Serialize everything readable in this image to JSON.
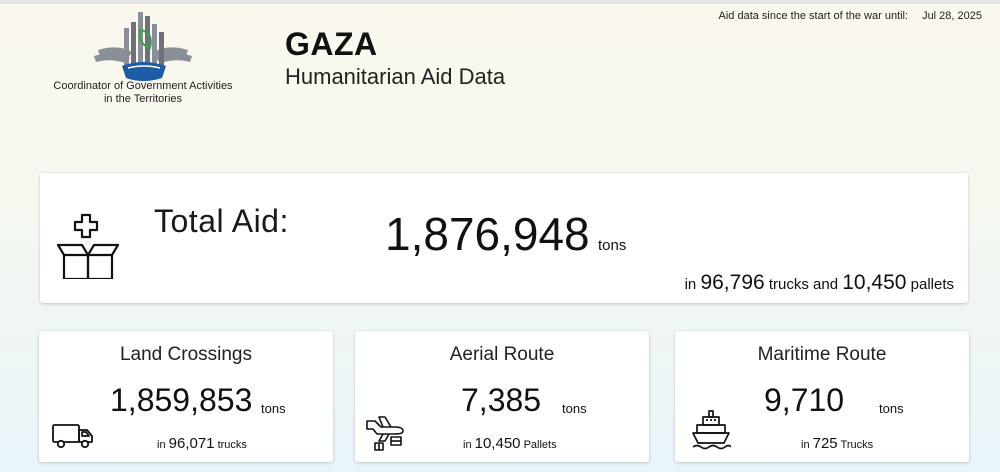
{
  "header": {
    "org_line1": "Coordinator of Government Activities",
    "org_line2": "in the Territories",
    "title": "GAZA",
    "subtitle": "Humanitarian Aid Data",
    "asof_label": "Aid data since the start of the war until:",
    "asof_date": "Jul 28, 2025"
  },
  "total": {
    "label": "Total Aid:",
    "value": "1,876,948",
    "unit": "tons",
    "in_word": "in",
    "trucks": "96,796",
    "trucks_label": "trucks and",
    "pallets": "10,450",
    "pallets_label": "pallets",
    "icon": "aid-box-icon"
  },
  "routes": [
    {
      "name": "Land Crossings",
      "value": "1,859,853",
      "unit": "tons",
      "in_word": "in",
      "count": "96,071",
      "count_label": "trucks",
      "icon": "truck-icon"
    },
    {
      "name": "Aerial Route",
      "value": "7,385",
      "unit": "tons",
      "in_word": "in",
      "count": "10,450",
      "count_label": "Pallets",
      "icon": "airdrop-icon"
    },
    {
      "name": "Maritime Route",
      "value": "9,710",
      "unit": "tons",
      "in_word": "in",
      "count": "725",
      "count_label": "Trucks",
      "icon": "ship-icon"
    }
  ],
  "colors": {
    "logo_blue": "#1f5aa6",
    "logo_green": "#3aa34a",
    "logo_gray": "#8a8f97"
  }
}
